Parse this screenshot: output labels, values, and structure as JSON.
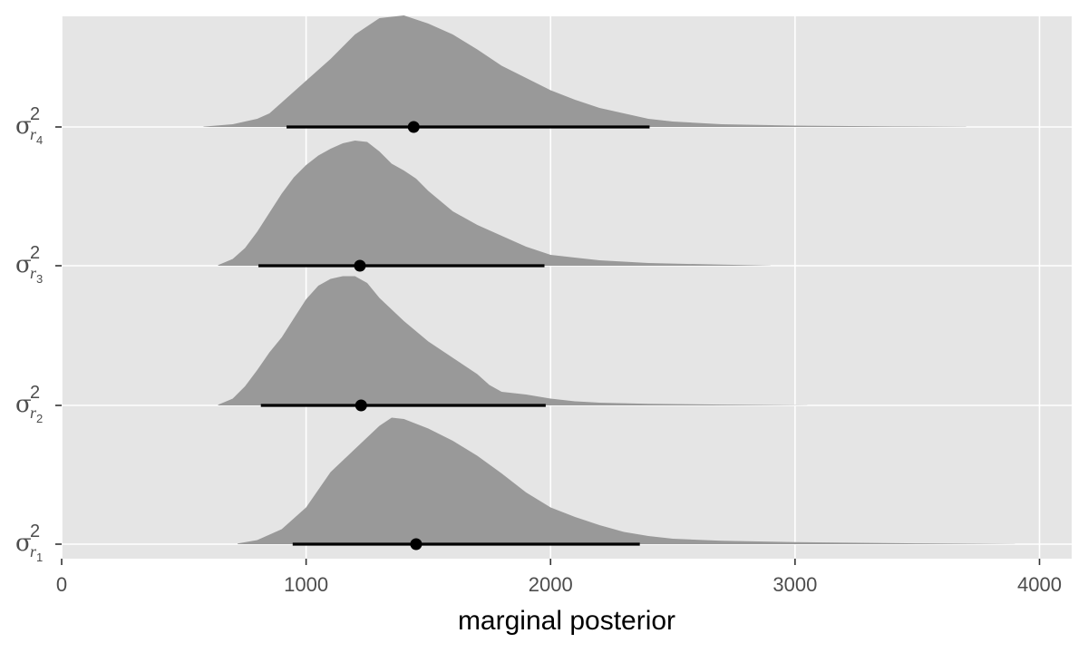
{
  "chart_data": {
    "type": "ridgeline",
    "title": "",
    "xlabel": "marginal posterior",
    "ylabel": "",
    "xlim": [
      0,
      4100
    ],
    "xticks": [
      0,
      1000,
      2000,
      3000,
      4000
    ],
    "xtick_labels": [
      "0",
      "1000",
      "2000",
      "3000",
      "4000"
    ],
    "grid": true,
    "legend": "none",
    "colors": {
      "panel": "#e5e5e5",
      "density": "#999999",
      "interval": "#000000",
      "tick": "#333333"
    },
    "series": [
      {
        "label": {
          "symbol": "σ",
          "sup": "2",
          "sub": "r",
          "subsub": "1"
        },
        "point": 1450,
        "interval": [
          945,
          2365
        ],
        "height": 420,
        "density": [
          [
            720,
            0.005
          ],
          [
            800,
            0.03
          ],
          [
            900,
            0.11
          ],
          [
            1000,
            0.27
          ],
          [
            1050,
            0.4
          ],
          [
            1100,
            0.53
          ],
          [
            1200,
            0.7
          ],
          [
            1300,
            0.87
          ],
          [
            1350,
            0.93
          ],
          [
            1400,
            0.92
          ],
          [
            1500,
            0.85
          ],
          [
            1600,
            0.76
          ],
          [
            1700,
            0.65
          ],
          [
            1800,
            0.52
          ],
          [
            1900,
            0.38
          ],
          [
            2000,
            0.27
          ],
          [
            2100,
            0.2
          ],
          [
            2200,
            0.14
          ],
          [
            2300,
            0.09
          ],
          [
            2400,
            0.06
          ],
          [
            2500,
            0.04
          ],
          [
            2700,
            0.025
          ],
          [
            3000,
            0.015
          ],
          [
            3500,
            0.006
          ],
          [
            3900,
            0.001
          ]
        ]
      },
      {
        "label": {
          "symbol": "σ",
          "sup": "2",
          "sub": "r",
          "subsub": "2"
        },
        "point": 1225,
        "interval": [
          815,
          1980
        ],
        "height": 420,
        "density": [
          [
            640,
            0.005
          ],
          [
            700,
            0.05
          ],
          [
            750,
            0.14
          ],
          [
            800,
            0.26
          ],
          [
            850,
            0.39
          ],
          [
            900,
            0.5
          ],
          [
            950,
            0.64
          ],
          [
            1000,
            0.78
          ],
          [
            1050,
            0.88
          ],
          [
            1100,
            0.93
          ],
          [
            1150,
            0.95
          ],
          [
            1200,
            0.95
          ],
          [
            1250,
            0.9
          ],
          [
            1300,
            0.79
          ],
          [
            1400,
            0.62
          ],
          [
            1500,
            0.47
          ],
          [
            1600,
            0.35
          ],
          [
            1700,
            0.23
          ],
          [
            1750,
            0.15
          ],
          [
            1800,
            0.1
          ],
          [
            1900,
            0.08
          ],
          [
            2000,
            0.05
          ],
          [
            2100,
            0.03
          ],
          [
            2200,
            0.02
          ],
          [
            2400,
            0.012
          ],
          [
            2700,
            0.006
          ],
          [
            3050,
            0.001
          ]
        ]
      },
      {
        "label": {
          "symbol": "σ",
          "sup": "2",
          "sub": "r",
          "subsub": "3"
        },
        "point": 1220,
        "interval": [
          805,
          1975
        ],
        "height": 420,
        "density": [
          [
            640,
            0.005
          ],
          [
            700,
            0.05
          ],
          [
            750,
            0.13
          ],
          [
            800,
            0.25
          ],
          [
            850,
            0.39
          ],
          [
            900,
            0.53
          ],
          [
            950,
            0.65
          ],
          [
            1000,
            0.74
          ],
          [
            1050,
            0.81
          ],
          [
            1100,
            0.86
          ],
          [
            1150,
            0.9
          ],
          [
            1200,
            0.92
          ],
          [
            1250,
            0.91
          ],
          [
            1300,
            0.84
          ],
          [
            1350,
            0.75
          ],
          [
            1400,
            0.7
          ],
          [
            1450,
            0.64
          ],
          [
            1500,
            0.55
          ],
          [
            1600,
            0.4
          ],
          [
            1700,
            0.3
          ],
          [
            1800,
            0.22
          ],
          [
            1900,
            0.14
          ],
          [
            2000,
            0.08
          ],
          [
            2200,
            0.04
          ],
          [
            2400,
            0.02
          ],
          [
            2700,
            0.008
          ],
          [
            2900,
            0.001
          ]
        ]
      },
      {
        "label": {
          "symbol": "σ",
          "sup": "2",
          "sub": "r",
          "subsub": "4"
        },
        "point": 1440,
        "interval": [
          920,
          2405
        ],
        "height": 420,
        "density": [
          [
            580,
            0.003
          ],
          [
            700,
            0.02
          ],
          [
            800,
            0.06
          ],
          [
            850,
            0.1
          ],
          [
            900,
            0.18
          ],
          [
            1000,
            0.34
          ],
          [
            1100,
            0.5
          ],
          [
            1200,
            0.68
          ],
          [
            1300,
            0.8
          ],
          [
            1400,
            0.82
          ],
          [
            1500,
            0.76
          ],
          [
            1600,
            0.68
          ],
          [
            1700,
            0.57
          ],
          [
            1800,
            0.45
          ],
          [
            1900,
            0.36
          ],
          [
            2000,
            0.27
          ],
          [
            2100,
            0.2
          ],
          [
            2200,
            0.14
          ],
          [
            2300,
            0.1
          ],
          [
            2400,
            0.06
          ],
          [
            2500,
            0.04
          ],
          [
            2700,
            0.02
          ],
          [
            3000,
            0.01
          ],
          [
            3400,
            0.004
          ],
          [
            3700,
            0.001
          ]
        ]
      }
    ]
  }
}
